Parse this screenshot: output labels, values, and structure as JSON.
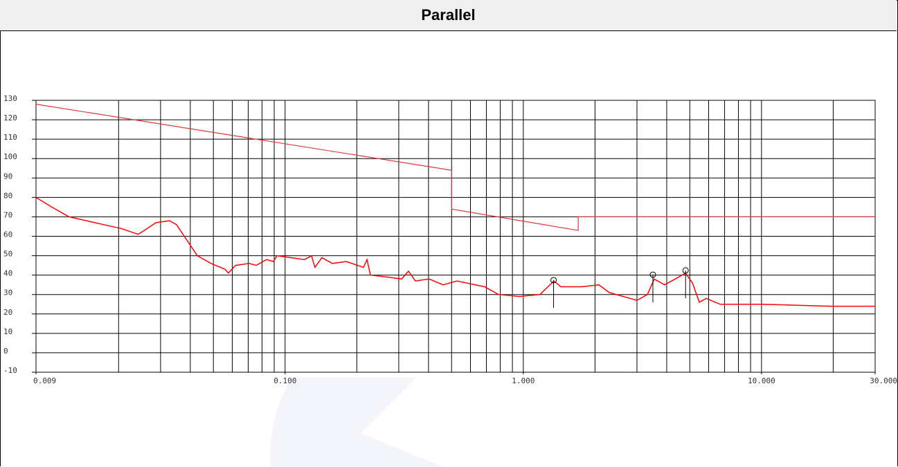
{
  "chart_data": {
    "type": "line",
    "title": "Parallel",
    "xscale": "log",
    "xlim": [
      0.009,
      30
    ],
    "ylim": [
      -10,
      130
    ],
    "xticks": [
      0.009,
      {
        "value": 0.1,
        "label": "0.100"
      },
      {
        "value": 1,
        "label": "1.000"
      },
      {
        "value": 10,
        "label": "10.000"
      },
      {
        "value": 30,
        "label": "30.000"
      }
    ],
    "yticks": [
      -10,
      0,
      10,
      20,
      30,
      40,
      50,
      60,
      70,
      80,
      90,
      100,
      110,
      120,
      130
    ],
    "xgrid": [
      0.02,
      0.03,
      0.04,
      0.05,
      0.06,
      0.07,
      0.08,
      0.09,
      0.1,
      0.2,
      0.3,
      0.4,
      0.5,
      0.6,
      0.7,
      0.8,
      0.9,
      1,
      2,
      3,
      4,
      5,
      6,
      7,
      8,
      9,
      10,
      20
    ],
    "grid": true,
    "series": [
      {
        "color": "#e03535",
        "x": [
          0.009,
          0.5,
          0.5,
          1.7,
          1.7,
          30
        ],
        "values": [
          128,
          94,
          74,
          63,
          70,
          70
        ]
      },
      {
        "color": "#ff0000",
        "x": [
          0.009,
          0.0105,
          0.0124,
          0.0173,
          0.0205,
          0.0242,
          0.0287,
          0.0327,
          0.035,
          0.0387,
          0.0428,
          0.0489,
          0.056,
          0.0578,
          0.0619,
          0.0707,
          0.0756,
          0.0836,
          0.0894,
          0.0924,
          0.1056,
          0.1208,
          0.1291,
          0.1335,
          0.1428,
          0.1579,
          0.1805,
          0.2134,
          0.2207,
          0.2282,
          0.2697,
          0.3083,
          0.3297,
          0.3525,
          0.403,
          0.4607,
          0.5267,
          0.6884,
          0.787,
          0.962,
          1.176,
          1.344,
          1.437,
          1.757,
          2.077,
          2.297,
          2.626,
          3.001,
          3.318,
          3.548,
          3.923,
          4.338,
          4.796,
          5.128,
          5.483,
          5.861,
          6.702,
          10.01,
          19.56,
          30
        ],
        "values": [
          80,
          75,
          70,
          66,
          64,
          61,
          67,
          68,
          66,
          58,
          50,
          46,
          43,
          41,
          45,
          46,
          45,
          48,
          47,
          50,
          49,
          48,
          50,
          44,
          49,
          46,
          47,
          44,
          48,
          40,
          39,
          38,
          42,
          37,
          38,
          35,
          37,
          34,
          30,
          29,
          30,
          37,
          34,
          34,
          35,
          31,
          29,
          27,
          30,
          38,
          35,
          38,
          41,
          36,
          26,
          28,
          25,
          25,
          24,
          24
        ]
      }
    ],
    "markers": {
      "x": [
        1.34,
        3.5,
        4.8
      ],
      "values": [
        37.4,
        40.2,
        42.4
      ]
    }
  }
}
